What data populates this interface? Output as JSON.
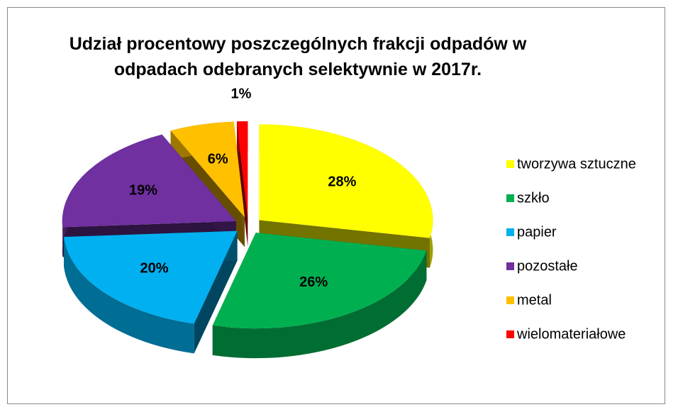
{
  "chart_data": {
    "type": "pie3d",
    "title": "Udział procentowy poszczególnych frakcji odpadów w odpadach odebranych selektywnie w 2017r.",
    "categories": [
      "tworzywa sztuczne",
      "szkło",
      "papier",
      "pozostałe",
      "metal",
      "wielomateriałowe"
    ],
    "values": [
      28,
      26,
      20,
      19,
      6,
      1
    ],
    "value_labels": [
      "28%",
      "26%",
      "20%",
      "19%",
      "6%",
      "1%"
    ],
    "colors": [
      "#ffff00",
      "#00b050",
      "#00b0f0",
      "#7030a0",
      "#ffc000",
      "#ff0000"
    ],
    "legend": "right"
  }
}
